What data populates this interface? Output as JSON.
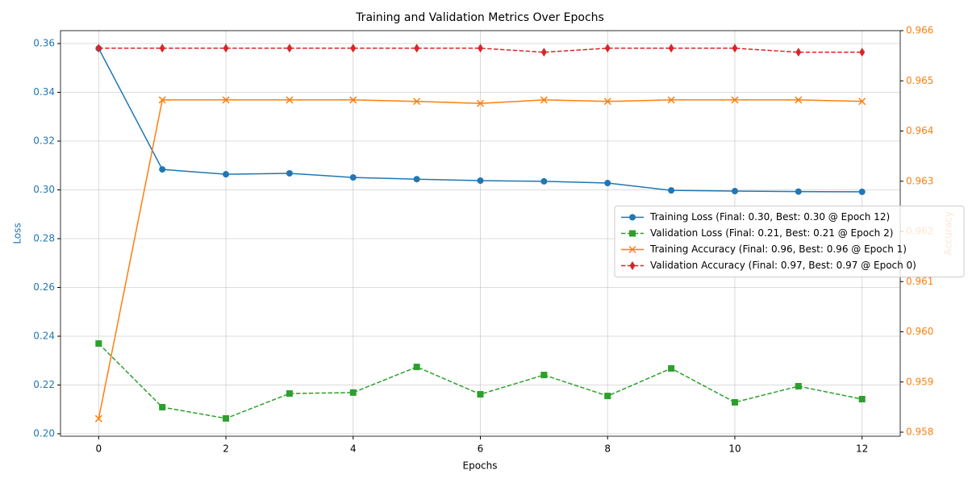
{
  "chart_data": {
    "type": "line",
    "title": "Training and Validation Metrics Over Epochs",
    "xlabel": "Epochs",
    "ylabel": "Loss",
    "y2label": "Accuracy",
    "x": [
      0,
      1,
      2,
      3,
      4,
      5,
      6,
      7,
      8,
      9,
      10,
      11,
      12
    ],
    "xlim": [
      -0.6,
      12.6
    ],
    "xticks": [
      0,
      2,
      4,
      6,
      8,
      10,
      12
    ],
    "ylim": [
      0.199,
      0.3653
    ],
    "yticks": [
      {
        "value": 0.2,
        "label": "0.20"
      },
      0.22,
      0.24,
      0.26,
      0.28,
      {
        "value": 0.3,
        "label": "0.30"
      },
      0.32,
      0.34,
      0.36
    ],
    "y2lim": [
      0.95792,
      0.966
    ],
    "y2ticks": [
      0.958,
      0.959,
      0.96,
      0.961,
      0.962,
      0.963,
      0.964,
      0.965,
      0.966
    ],
    "y2tick_labels": [
      "0.958",
      "0.959",
      "0.960",
      "0.961",
      "0.962",
      "0.963",
      "0.964",
      "0.965",
      "0.966"
    ],
    "ylabel_color": "#1f77b4",
    "y2label_color": "#ff7f0e",
    "grid": true,
    "legend_loc": "center right",
    "series": [
      {
        "name": "Training Loss (Final: 0.30, Best: 0.30 @ Epoch 12)",
        "color": "#1f77b4",
        "marker": "o",
        "linestyle": "-",
        "values": [
          0.358,
          0.3084,
          0.3064,
          0.3068,
          0.3051,
          0.3044,
          0.3038,
          0.3035,
          0.3028,
          0.2998,
          0.2995,
          0.2993,
          0.2992
        ]
      },
      {
        "name": "Validation Loss (Final: 0.21, Best: 0.21 @ Epoch 2)",
        "color": "#2ca02c",
        "marker": "s",
        "linestyle": "--",
        "values": [
          0.237,
          0.2109,
          0.2063,
          0.2165,
          0.2169,
          0.2274,
          0.2162,
          0.2241,
          0.2155,
          0.2268,
          0.2129,
          0.2195,
          0.2142
        ]
      },
      {
        "name": "Training Accuracy (Final: 0.96, Best: 0.96 @ Epoch 1)",
        "color": "#ff7f0e",
        "marker": "x",
        "linestyle": "-",
        "axis": "y2",
        "values": [
          0.95827,
          0.96462,
          0.96462,
          0.96462,
          0.96462,
          0.96459,
          0.96455,
          0.96462,
          0.96459,
          0.96462,
          0.96462,
          0.96462,
          0.96459
        ]
      },
      {
        "name": "Validation Accuracy (Final: 0.97, Best: 0.97 @ Epoch 0)",
        "color": "#d62728",
        "marker": "d",
        "linestyle": "--",
        "axis": "y2",
        "values": [
          0.96565,
          0.96565,
          0.96565,
          0.96565,
          0.96565,
          0.96565,
          0.96565,
          0.96557,
          0.96565,
          0.96565,
          0.96565,
          0.96557,
          0.96557
        ]
      }
    ]
  }
}
